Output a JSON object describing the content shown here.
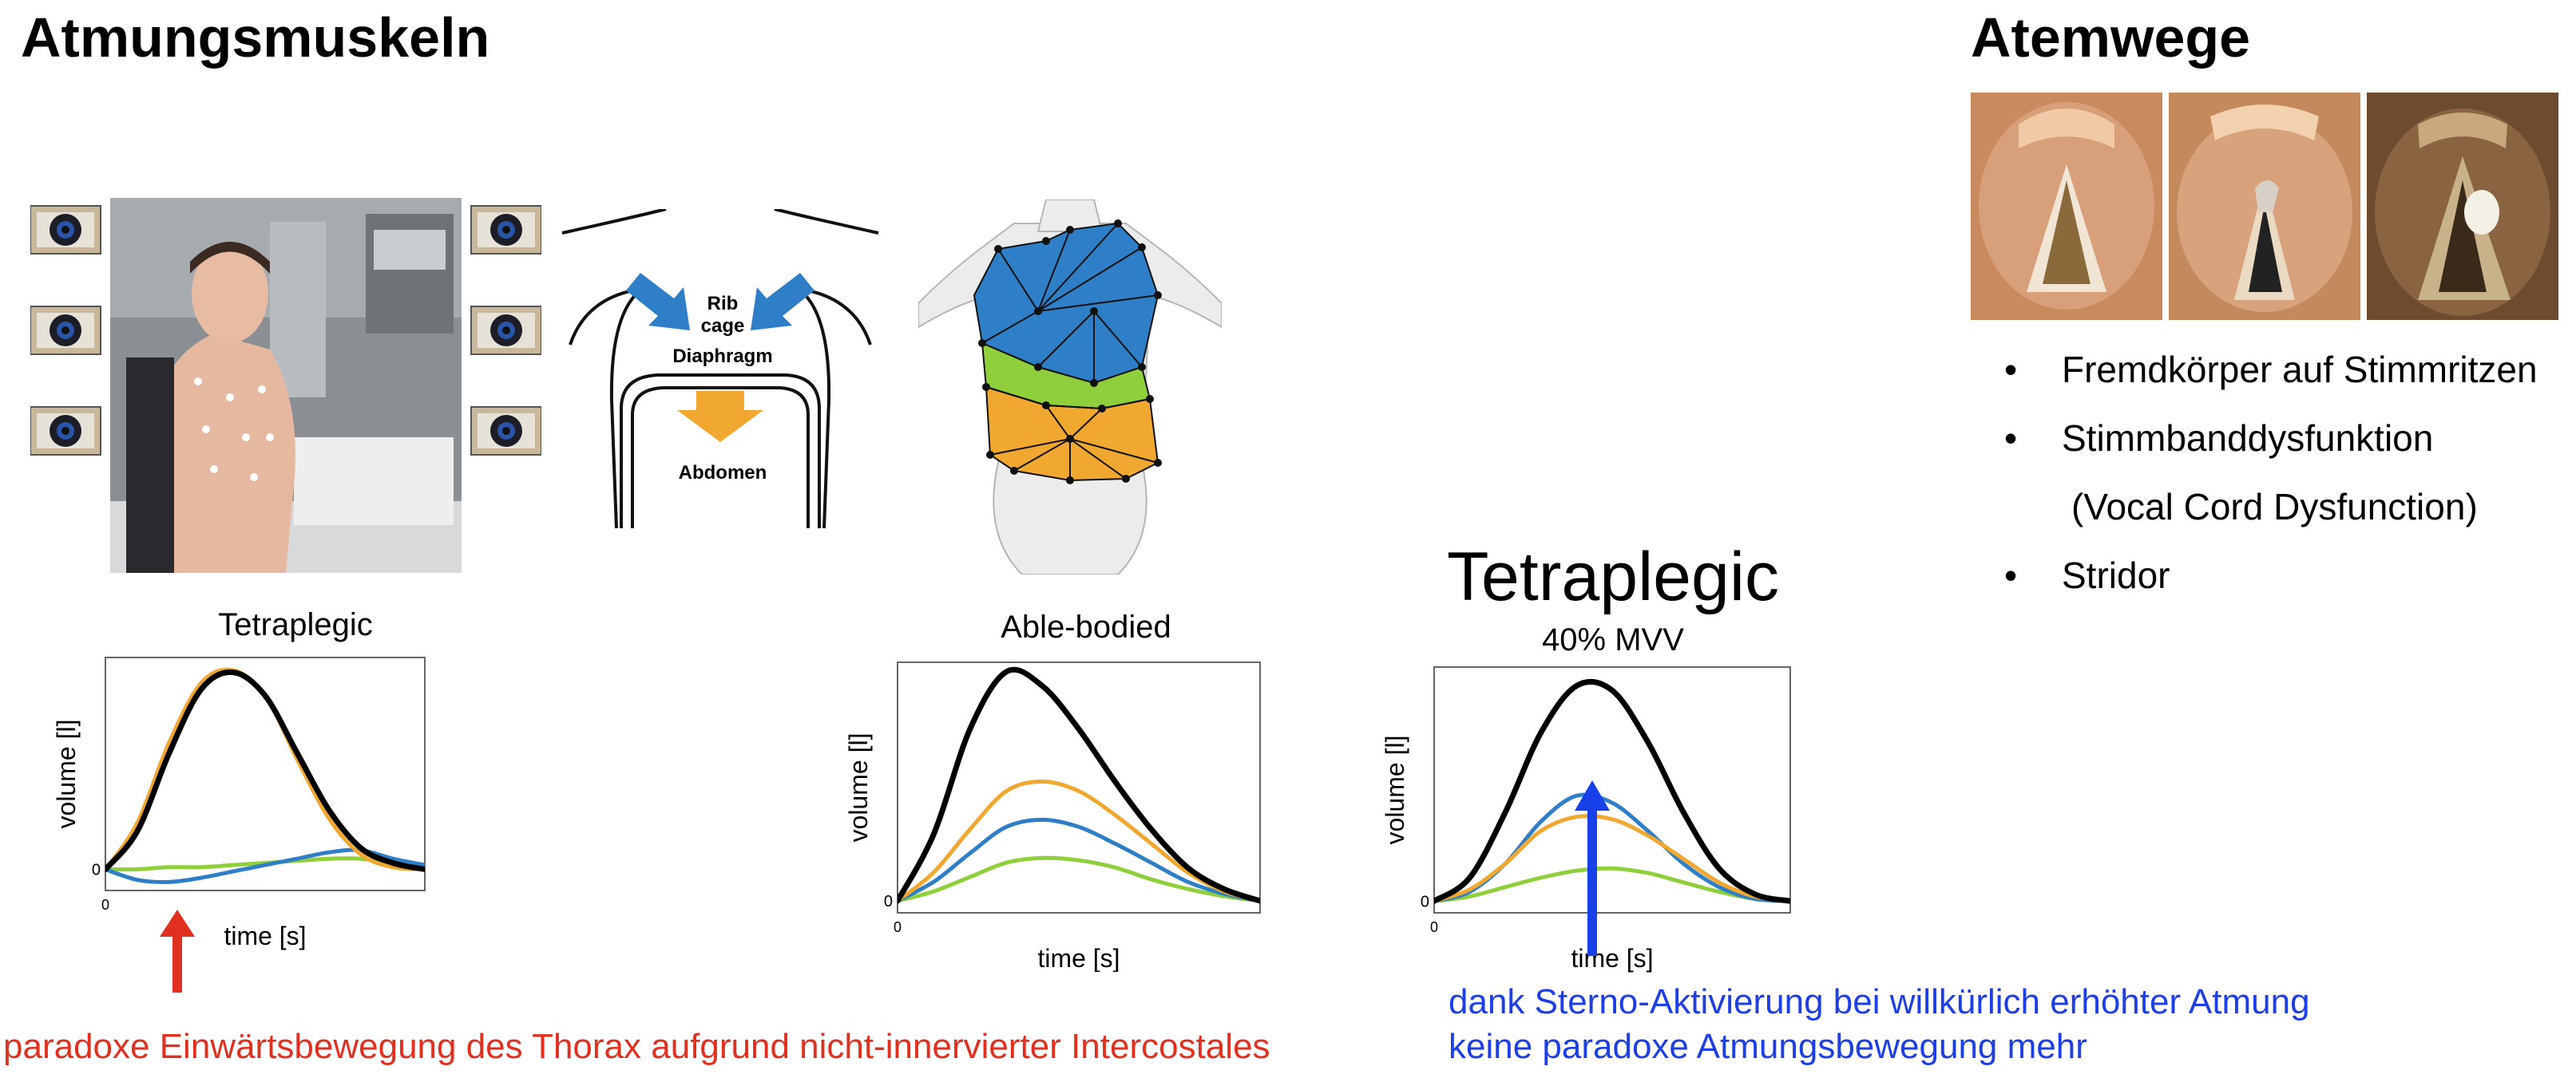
{
  "headings": {
    "left": "Atmungsmuskeln",
    "right": "Atemwege"
  },
  "diagram_labels": {
    "rib": "Rib",
    "cage": "cage",
    "diaphragm": "Diaphragm",
    "abdomen": "Abdomen"
  },
  "airway_list": {
    "bullet": "•",
    "items": [
      "Fremdkörper auf Stimmritzen",
      "Stimmbanddysfunktion",
      "(Vocal Cord Dysfunction)",
      "Stridor"
    ]
  },
  "captions": {
    "red": "paradoxe Einwärtsbewegung des Thorax aufgrund nicht-innervierter Intercostales",
    "blue_line1": "dank Sterno-Aktivierung bei willkürlich erhöhter Atmung",
    "blue_line2": "keine paradoxe Atmungsbewegung mehr"
  },
  "colors": {
    "total": "#000000",
    "rib_cage": "#f0a830",
    "upper": "#2f7fc8",
    "lower": "#8fcf3c",
    "red_arrow": "#e03020",
    "blue_arrow": "#1840e8",
    "red_text": "#e03020",
    "blue_text": "#1e3ee6"
  },
  "chart_data": [
    {
      "type": "line",
      "title": "Tetraplegic",
      "subtitle": "",
      "xlabel": "time [s]",
      "ylabel": "volume [l]",
      "x_tick": "0",
      "y_tick": "0",
      "ylim": [
        -0.1,
        1.0
      ],
      "x": [
        0,
        0.1,
        0.2,
        0.3,
        0.4,
        0.5,
        0.6,
        0.7,
        0.8,
        0.9,
        1.0
      ],
      "series": [
        {
          "values": [
            0,
            0.18,
            0.55,
            0.85,
            0.93,
            0.82,
            0.55,
            0.28,
            0.1,
            0.03,
            0
          ]
        },
        {
          "values": [
            0,
            0.22,
            0.6,
            0.88,
            0.94,
            0.82,
            0.52,
            0.24,
            0.07,
            0.01,
            0
          ]
        },
        {
          "values": [
            0,
            -0.05,
            -0.06,
            -0.04,
            -0.01,
            0.02,
            0.05,
            0.08,
            0.09,
            0.05,
            0.02
          ]
        },
        {
          "values": [
            0,
            0,
            0.01,
            0.01,
            0.02,
            0.03,
            0.04,
            0.05,
            0.05,
            0.03,
            0.02
          ]
        }
      ]
    },
    {
      "type": "line",
      "title": "Able-bodied",
      "subtitle": "",
      "xlabel": "time [s]",
      "ylabel": "volume [l]",
      "x_tick": "0",
      "y_tick": "0",
      "ylim": [
        -0.05,
        1.0
      ],
      "x": [
        0,
        0.1,
        0.2,
        0.3,
        0.4,
        0.5,
        0.6,
        0.7,
        0.8,
        0.9,
        1.0
      ],
      "series": [
        {
          "values": [
            0,
            0.28,
            0.72,
            0.96,
            0.9,
            0.72,
            0.5,
            0.3,
            0.14,
            0.05,
            0
          ]
        },
        {
          "values": [
            0,
            0.12,
            0.3,
            0.46,
            0.5,
            0.46,
            0.36,
            0.24,
            0.12,
            0.04,
            0
          ]
        },
        {
          "values": [
            0,
            0.08,
            0.2,
            0.31,
            0.34,
            0.31,
            0.24,
            0.16,
            0.08,
            0.03,
            0
          ]
        },
        {
          "values": [
            0,
            0.04,
            0.1,
            0.16,
            0.18,
            0.17,
            0.14,
            0.09,
            0.05,
            0.02,
            0
          ]
        }
      ]
    },
    {
      "type": "line",
      "title": "Tetraplegic",
      "subtitle": "40% MVV",
      "xlabel": "time [s]",
      "ylabel": "volume [l]",
      "x_tick": "0",
      "y_tick": "0",
      "ylim": [
        -0.05,
        1.0
      ],
      "x": [
        0,
        0.1,
        0.2,
        0.3,
        0.4,
        0.5,
        0.6,
        0.7,
        0.8,
        0.9,
        1.0
      ],
      "series": [
        {
          "values": [
            0,
            0.1,
            0.38,
            0.72,
            0.92,
            0.9,
            0.68,
            0.38,
            0.14,
            0.03,
            0
          ]
        },
        {
          "values": [
            0,
            0.05,
            0.16,
            0.3,
            0.36,
            0.35,
            0.28,
            0.18,
            0.08,
            0.02,
            0
          ]
        },
        {
          "values": [
            0,
            0.04,
            0.16,
            0.34,
            0.45,
            0.42,
            0.3,
            0.16,
            0.06,
            0.01,
            0
          ]
        },
        {
          "values": [
            0,
            0.02,
            0.06,
            0.1,
            0.13,
            0.14,
            0.12,
            0.08,
            0.04,
            0.01,
            0
          ]
        }
      ]
    }
  ]
}
